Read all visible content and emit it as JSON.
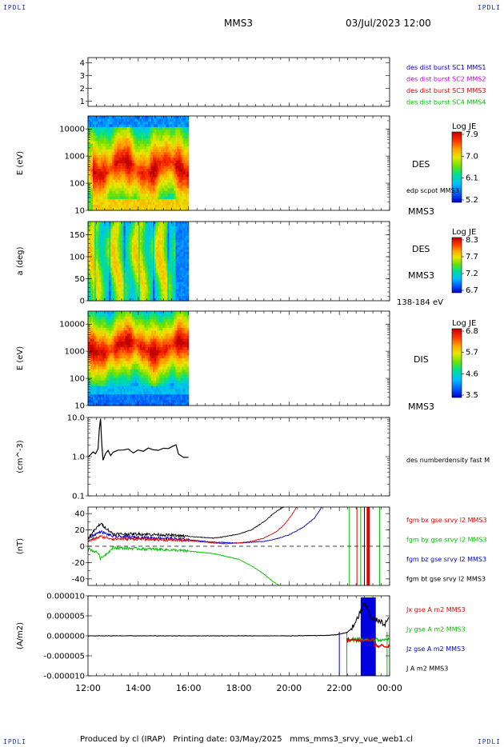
{
  "header": {
    "corner_tl": "IPDLI",
    "corner_tr": "IPDLI",
    "corner_bl": "IPDLI",
    "corner_br": "IPDLI",
    "title": "MMS3",
    "datetime": "03/Jul/2023 12:00"
  },
  "footer": {
    "text": "Produced by cl (IRAP)   Printing date: 03/May/2025   mms_mms3_srvy_vue_web1.cl"
  },
  "colors": {
    "mms1": "#0000d0",
    "mms2": "#d000d0",
    "mms3": "#e00000",
    "mms4": "#00c000",
    "fgm_bx": "#e00000",
    "fgm_by": "#00c000",
    "fgm_bz": "#0000d0",
    "fgm_bt": "#000000",
    "colorbar": [
      "#0000c8",
      "#0060ff",
      "#00c0ff",
      "#00e090",
      "#70e000",
      "#e8e800",
      "#ffa000",
      "#ff3000",
      "#c00000"
    ]
  },
  "chart_data": [
    {
      "type": "table",
      "panel": "burst",
      "yticks": [
        "4",
        "3",
        "2",
        "1"
      ],
      "legend": [
        "des dist burst SC1 MMS1",
        "des dist burst SC2 MMS2",
        "des dist burst SC3 MMS3",
        "des dist burst SC4 MMS4"
      ],
      "legend_colors": [
        "#0000d0",
        "#d000d0",
        "#e00000",
        "#00c000"
      ]
    },
    {
      "type": "heatmap",
      "panel": "des_energy",
      "ylabel": "E (eV)",
      "scale": "log",
      "ylim": [
        10,
        30000
      ],
      "yticks": [
        "10000",
        "1000",
        "100",
        "10"
      ],
      "species": "DES",
      "right_note": "edp scpot MMS3",
      "right_sub": "MMS3",
      "colorbar_title": "Log JE",
      "colorbar_ticks": [
        "7.9",
        "7.0",
        "6.1",
        "5.2"
      ],
      "data_end": "16:00"
    },
    {
      "type": "heatmap",
      "panel": "des_pitch",
      "ylabel": "a (deg)",
      "ylim": [
        0,
        180
      ],
      "yticks": [
        "150",
        "100",
        "50",
        "0"
      ],
      "species": "DES",
      "right_sub": "MMS3",
      "right_note": "138-184 eV",
      "colorbar_title": "Log JE",
      "colorbar_ticks": [
        "8.3",
        "7.7",
        "7.2",
        "6.7"
      ],
      "data_end": "16:00"
    },
    {
      "type": "heatmap",
      "panel": "dis_energy",
      "ylabel": "E (eV)",
      "scale": "log",
      "ylim": [
        10,
        30000
      ],
      "yticks": [
        "10000",
        "1000",
        "100",
        "10"
      ],
      "species": "DIS",
      "right_sub": "MMS3",
      "colorbar_title": "Log JE",
      "colorbar_ticks": [
        "6.8",
        "5.7",
        "4.6",
        "3.5"
      ],
      "data_end": "16:00"
    },
    {
      "type": "line",
      "panel": "density",
      "ylabel": "(cm^-3)",
      "scale": "log",
      "ylim": [
        0.1,
        10
      ],
      "yticks": [
        "10.0",
        "1.0",
        "0.1"
      ],
      "legend": [
        "des numberdensity fast M"
      ],
      "series": [
        {
          "x": [
            12.0,
            12.1,
            12.2,
            12.3,
            12.4,
            12.45,
            12.5,
            12.55,
            12.6,
            12.7,
            12.8,
            12.9,
            13.0,
            13.2,
            13.4,
            13.6,
            13.8,
            14.0,
            14.2,
            14.4,
            14.6,
            14.8,
            15.0,
            15.2,
            15.4,
            15.5,
            15.6,
            15.7,
            15.8,
            16.0
          ],
          "y": [
            1.0,
            1.1,
            1.3,
            1.2,
            1.6,
            5.0,
            9.5,
            2.0,
            0.85,
            1.2,
            1.4,
            1.1,
            1.3,
            1.4,
            1.45,
            1.5,
            1.2,
            1.55,
            1.4,
            1.6,
            1.45,
            1.4,
            1.6,
            1.7,
            1.9,
            2.0,
            1.2,
            1.1,
            1.0,
            1.0
          ]
        }
      ]
    },
    {
      "type": "line",
      "panel": "fgm",
      "ylabel": "(nT)",
      "ylim": [
        -48,
        48
      ],
      "yticks": [
        "40",
        "20",
        "0",
        "-20",
        "-40"
      ],
      "legend": [
        "fgm bx gse srvy l2 MMS3",
        "fgm by gse srvy l2 MMS3",
        "fgm bz gse srvy l2 MMS3",
        "fgm bt gse srvy l2 MMS3"
      ],
      "legend_colors": [
        "#e00000",
        "#00c000",
        "#0000d0",
        "#000000"
      ],
      "series": [
        {
          "name": "bx",
          "x": [
            12.0,
            12.5,
            13.0,
            14.0,
            15.0,
            16.0,
            17.0,
            17.5,
            18.0,
            18.5,
            19.0,
            19.5,
            19.8,
            20.1,
            20.3
          ],
          "y": [
            6,
            12,
            9,
            9,
            8,
            7,
            4,
            3,
            4,
            6,
            10,
            18,
            26,
            38,
            48
          ]
        },
        {
          "name": "by",
          "x": [
            12.0,
            12.4,
            12.5,
            13.0,
            14.0,
            15.0,
            16.0,
            17.0,
            18.0,
            18.5,
            19.0,
            19.3,
            19.6
          ],
          "y": [
            -3,
            -8,
            -15,
            -2,
            -3,
            -4,
            -6,
            -9,
            -16,
            -24,
            -34,
            -42,
            -48
          ]
        },
        {
          "name": "bz",
          "x": [
            12.0,
            12.5,
            13.0,
            14.0,
            15.0,
            16.0,
            17.0,
            18.0,
            19.0,
            19.5,
            20.0,
            20.5,
            21.0,
            21.3
          ],
          "y": [
            10,
            18,
            12,
            11,
            10,
            8,
            5,
            4,
            6,
            9,
            14,
            22,
            34,
            48
          ]
        },
        {
          "name": "bt",
          "x": [
            12.0,
            12.5,
            13.0,
            14.0,
            15.0,
            16.0,
            17.0,
            17.5,
            18.0,
            18.5,
            19.0,
            19.3,
            19.6,
            19.8
          ],
          "y": [
            10,
            28,
            15,
            15,
            14,
            12,
            10,
            12,
            15,
            20,
            30,
            38,
            45,
            48
          ]
        }
      ]
    },
    {
      "type": "line",
      "panel": "current",
      "ylabel": "(A/m2)",
      "ylim": [
        -1e-05,
        1e-05
      ],
      "yticks": [
        "0.000010",
        "0.000005",
        "0.000000",
        "-0.000005",
        "-0.000010"
      ],
      "legend": [
        "Jx gse A m2 MMS3",
        "Jy gse A m2 MMS3",
        "Jz gse A m2 MMS3",
        "J A m2 MMS3"
      ],
      "legend_colors": [
        "#e00000",
        "#00c000",
        "#0000d0",
        "#000000"
      ],
      "series": [
        {
          "name": "J",
          "x": [
            12.0,
            14.0,
            16.0,
            18.0,
            20.0,
            21.5,
            21.9,
            22.3,
            22.6,
            22.8,
            23.0,
            23.3,
            23.6,
            23.8,
            24.0
          ],
          "y": [
            0,
            0,
            0,
            0,
            0,
            1e-07,
            3e-07,
            8e-07,
            2.5e-06,
            5.5e-06,
            8e-06,
            4.5e-06,
            3.5e-06,
            3e-06,
            4.5e-06
          ]
        }
      ]
    }
  ],
  "xaxis": {
    "ticks": [
      "12:00",
      "14:00",
      "16:00",
      "18:00",
      "20:00",
      "22:00",
      "00:00"
    ],
    "values": [
      12,
      14,
      16,
      18,
      20,
      22,
      24
    ],
    "range": [
      12,
      24
    ]
  }
}
